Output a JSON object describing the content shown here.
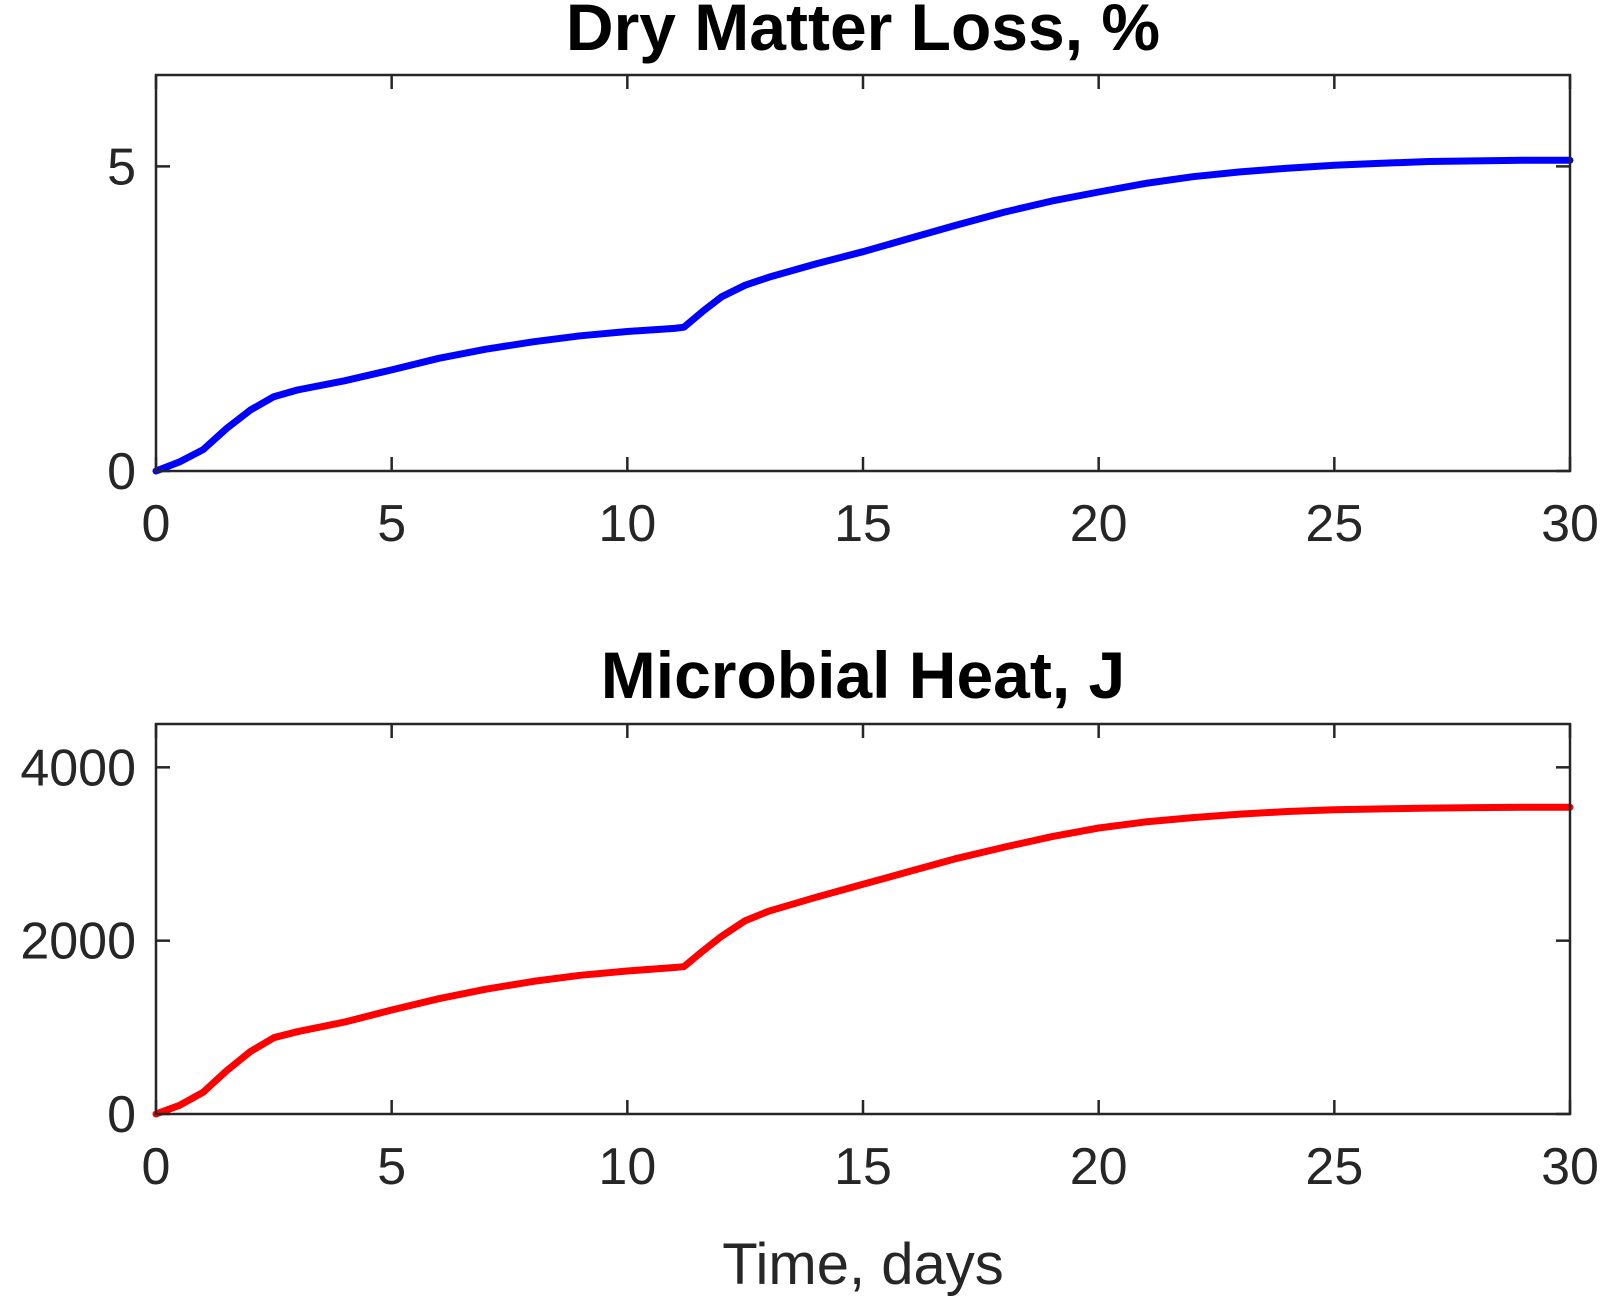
{
  "chart_data": [
    {
      "type": "line",
      "title": "Dry Matter Loss, %",
      "xlabel": "",
      "ylabel": "",
      "xlim": [
        0,
        30
      ],
      "ylim": [
        0,
        6.5
      ],
      "xticks": [
        0,
        5,
        10,
        15,
        20,
        25,
        30
      ],
      "xtick_labels": [
        "0",
        "5",
        "10",
        "15",
        "20",
        "25",
        "30"
      ],
      "yticks": [
        0,
        5
      ],
      "ytick_labels": [
        "0",
        "5"
      ],
      "grid": false,
      "series": [
        {
          "name": "Dry Matter Loss",
          "color": "#0000ff",
          "x": [
            0,
            0.5,
            1,
            1.5,
            2,
            2.5,
            3,
            4,
            5,
            6,
            7,
            8,
            9,
            10,
            11,
            11.2,
            11.6,
            12,
            12.5,
            13,
            14,
            15,
            16,
            17,
            18,
            19,
            20,
            21,
            22,
            23,
            24,
            25,
            26,
            27,
            28,
            29,
            30
          ],
          "y": [
            0,
            0.15,
            0.35,
            0.7,
            1.0,
            1.22,
            1.33,
            1.48,
            1.66,
            1.85,
            2.0,
            2.12,
            2.22,
            2.29,
            2.34,
            2.36,
            2.62,
            2.86,
            3.05,
            3.18,
            3.4,
            3.6,
            3.82,
            4.04,
            4.25,
            4.43,
            4.58,
            4.72,
            4.83,
            4.91,
            4.97,
            5.02,
            5.05,
            5.08,
            5.09,
            5.1,
            5.1
          ]
        }
      ]
    },
    {
      "type": "line",
      "title": "Microbial Heat, J",
      "xlabel": "Time, days",
      "ylabel": "",
      "xlim": [
        0,
        30
      ],
      "ylim": [
        0,
        4500
      ],
      "xticks": [
        0,
        5,
        10,
        15,
        20,
        25,
        30
      ],
      "xtick_labels": [
        "0",
        "5",
        "10",
        "15",
        "20",
        "25",
        "30"
      ],
      "yticks": [
        0,
        2000,
        4000
      ],
      "ytick_labels": [
        "0",
        "2000",
        "4000"
      ],
      "grid": false,
      "series": [
        {
          "name": "Microbial Heat",
          "color": "#ff0000",
          "x": [
            0,
            0.5,
            1,
            1.5,
            2,
            2.5,
            3,
            4,
            5,
            6,
            7,
            8,
            9,
            10,
            11,
            11.2,
            11.6,
            12,
            12.5,
            13,
            14,
            15,
            16,
            17,
            18,
            19,
            20,
            21,
            22,
            23,
            24,
            25,
            26,
            27,
            28,
            29,
            30
          ],
          "y": [
            0,
            100,
            250,
            500,
            720,
            880,
            950,
            1060,
            1200,
            1330,
            1440,
            1530,
            1600,
            1650,
            1690,
            1700,
            1880,
            2050,
            2230,
            2340,
            2500,
            2650,
            2800,
            2950,
            3080,
            3200,
            3300,
            3370,
            3420,
            3460,
            3490,
            3510,
            3520,
            3530,
            3535,
            3540,
            3540
          ]
        }
      ]
    }
  ]
}
